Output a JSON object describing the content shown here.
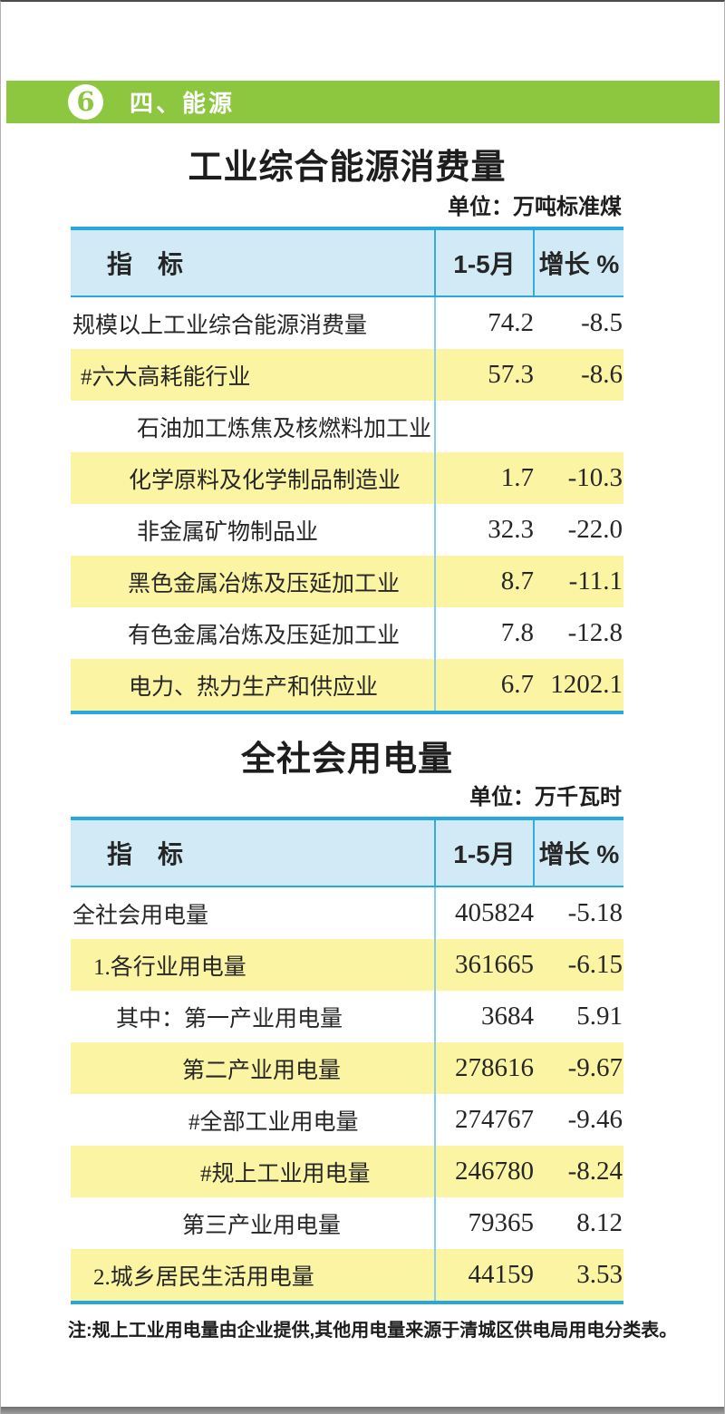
{
  "page": {
    "badge_number": "6",
    "section_title": "四、能源",
    "note": "注:规上工业用电量由企业提供,其他用电量来源于清城区供电局用电分类表。"
  },
  "colors": {
    "band_green": "#8dc63f",
    "rule_blue": "#29a8e0",
    "header_bg": "#d2e9f6",
    "row_yellow": "#fbf4a2",
    "text": "#231f20"
  },
  "tables": [
    {
      "title": "工业综合能源消费量",
      "unit": "单位：万吨标准煤",
      "columns": [
        "指　标",
        "1-5月",
        "增长 %"
      ],
      "rows": [
        {
          "label": "规模以上工业综合能源消费量",
          "indent": 2,
          "value": "74.2",
          "growth": "-8.5"
        },
        {
          "label": "#六大高耗能行业",
          "indent": 11,
          "value": "57.3",
          "growth": "-8.6"
        },
        {
          "label": "石油加工炼焦及核燃料加工业",
          "indent": 73,
          "value": "",
          "growth": ""
        },
        {
          "label": "化学原料及化学制品制造业",
          "indent": 64,
          "value": "1.7",
          "growth": "-10.3"
        },
        {
          "label": "非金属矿物制品业",
          "indent": 73,
          "value": "32.3",
          "growth": "-22.0"
        },
        {
          "label": "黑色金属冶炼及压延加工业",
          "indent": 63,
          "value": "8.7",
          "growth": "-11.1"
        },
        {
          "label": "有色金属冶炼及压延加工业",
          "indent": 63,
          "value": "7.8",
          "growth": "-12.8"
        },
        {
          "label": "电力、热力生产和供应业",
          "indent": 64,
          "value": "6.7",
          "growth": "1202.1"
        }
      ]
    },
    {
      "title": "全社会用电量",
      "unit": "单位：万千瓦时",
      "columns": [
        "指　标",
        "1-5月",
        "增长 %"
      ],
      "rows": [
        {
          "label": "全社会用电量",
          "indent": 2,
          "value": "405824",
          "growth": "-5.18"
        },
        {
          "label": "1.各行业用电量",
          "indent": 25,
          "value": "361665",
          "growth": "-6.15"
        },
        {
          "label": "其中：第一产业用电量",
          "indent": 50,
          "value": "3684",
          "growth": "5.91"
        },
        {
          "label": "第二产业用电量",
          "indent": 123,
          "value": "278616",
          "growth": "-9.67"
        },
        {
          "label": "#全部工业用电量",
          "indent": 130,
          "value": "274767",
          "growth": "-9.46"
        },
        {
          "label": "#规上工业用电量",
          "indent": 143,
          "value": "246780",
          "growth": "-8.24"
        },
        {
          "label": "第三产业用电量",
          "indent": 123,
          "value": "79365",
          "growth": "8.12"
        },
        {
          "label": "2.城乡居民生活用电量",
          "indent": 25,
          "value": "44159",
          "growth": "3.53"
        }
      ]
    }
  ]
}
